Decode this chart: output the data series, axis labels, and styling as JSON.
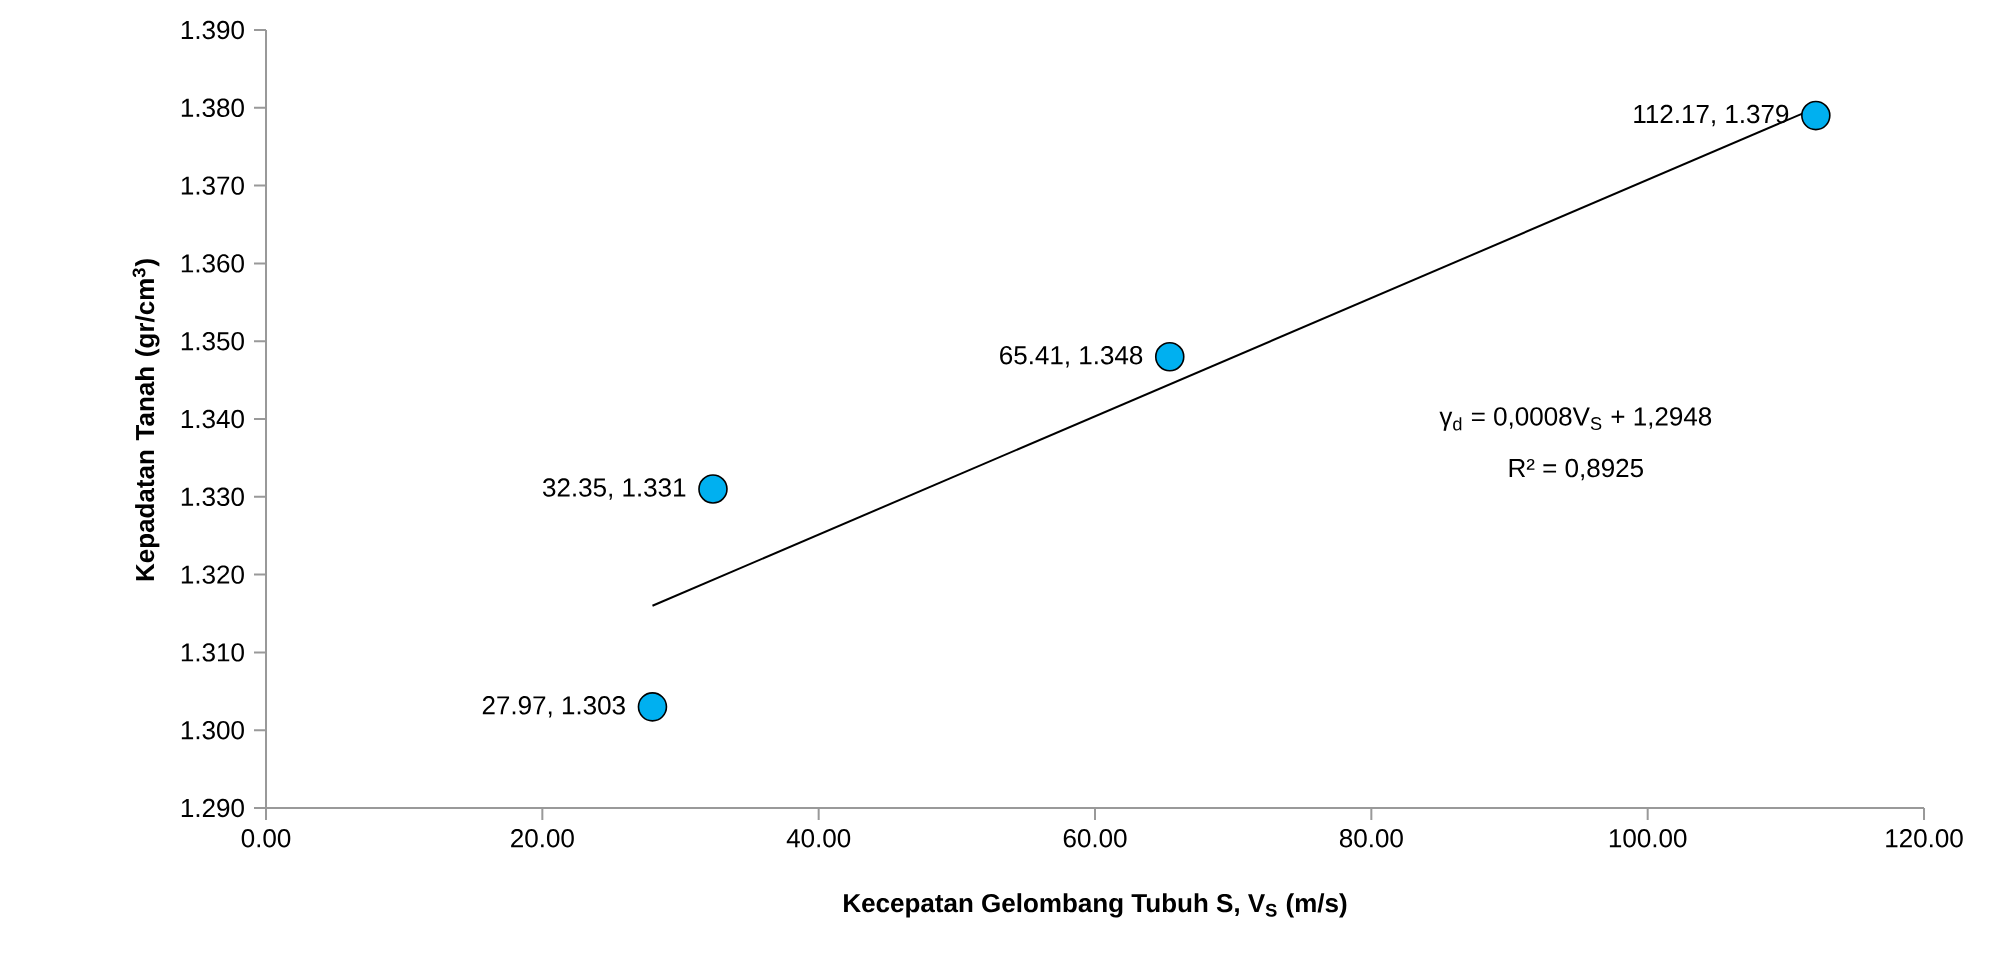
{
  "chart_data": {
    "type": "scatter",
    "xlabel": "Kecepatan Gelombang Tubuh S, V$_{S}$ (m/s)",
    "ylabel": "Kepadatan Tanah (gr/cm$^{3}$)",
    "xlim": [
      0,
      120
    ],
    "xticks": [
      {
        "value": 0,
        "label": "0.00"
      },
      {
        "value": 20,
        "label": "20.00"
      },
      {
        "value": 40,
        "label": "40.00"
      },
      {
        "value": 60,
        "label": "60.00"
      },
      {
        "value": 80,
        "label": "80.00"
      },
      {
        "value": 100,
        "label": "100.00"
      },
      {
        "value": 120,
        "label": "120.00"
      }
    ],
    "ylim": [
      1.29,
      1.39
    ],
    "yticks": [
      {
        "value": 1.29,
        "label": "1.290"
      },
      {
        "value": 1.3,
        "label": "1.300"
      },
      {
        "value": 1.31,
        "label": "1.310"
      },
      {
        "value": 1.32,
        "label": "1.320"
      },
      {
        "value": 1.33,
        "label": "1.330"
      },
      {
        "value": 1.34,
        "label": "1.340"
      },
      {
        "value": 1.35,
        "label": "1.350"
      },
      {
        "value": 1.36,
        "label": "1.360"
      },
      {
        "value": 1.37,
        "label": "1.370"
      },
      {
        "value": 1.38,
        "label": "1.380"
      },
      {
        "value": 1.39,
        "label": "1.390"
      }
    ],
    "grid": false,
    "series": [
      {
        "x": [
          27.97,
          32.35,
          65.41,
          112.17
        ],
        "values": [
          1.303,
          1.331,
          1.348,
          1.379
        ],
        "color": "#00b0f0",
        "marker": "circle",
        "value_labels": [
          "27.97, 1.303",
          "32.35, 1.331",
          "65.41, 1.348",
          "112.17, 1.379"
        ]
      },
      {
        "type": "line",
        "x": [
          27.97,
          112.17
        ],
        "values": [
          1.316,
          1.38
        ],
        "color": "#000000",
        "marker": "none"
      }
    ],
    "annotations": [
      "γ$_{d}$ = 0,0008V$_{S}$ + 1,2948",
      "R² = 0,8925"
    ]
  }
}
